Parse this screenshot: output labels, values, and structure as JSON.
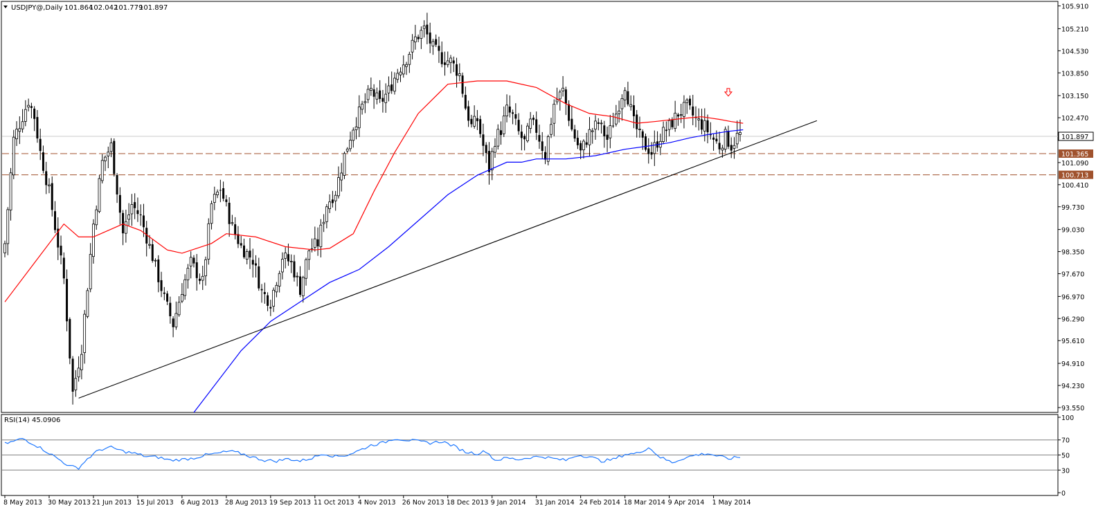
{
  "colors": {
    "background": "#ffffff",
    "frame": "#000000",
    "candle": "#000000",
    "ma_fast": "#ff0000",
    "ma_slow": "#0000ff",
    "trendline": "#000000",
    "support_level": "#a0522d",
    "rsi_line": "#1e78ff",
    "rsi_levels": "#808080",
    "price_label_bg": "#a0522d",
    "price_label_text": "#ffffff",
    "arrow": "#ff0000"
  },
  "chart_data": [
    {
      "type": "candlestick",
      "title": "USDJPY@,Daily",
      "ohlc_values": [
        "101.864",
        "102.042",
        "101.779",
        "101.897"
      ],
      "current_price_label": "101.897",
      "y_ticks": [
        "105.910",
        "105.210",
        "104.530",
        "103.850",
        "103.150",
        "102.470",
        "101.090",
        "100.410",
        "99.730",
        "99.030",
        "98.350",
        "97.670",
        "96.970",
        "96.290",
        "95.610",
        "94.910",
        "94.230",
        "93.550"
      ],
      "ylim": [
        93.4,
        106.05
      ],
      "x_tick_labels": [
        "8 May 2013",
        "30 May 2013",
        "21 Jun 2013",
        "15 Jul 2013",
        "6 Aug 2013",
        "28 Aug 2013",
        "19 Sep 2013",
        "11 Oct 2013",
        "4 Nov 2013",
        "26 Nov 2013",
        "18 Dec 2013",
        "9 Jan 2014",
        "31 Jan 2014",
        "24 Feb 2014",
        "18 Mar 2014",
        "9 Apr 2014",
        "1 May 2014"
      ],
      "x_tick_index": [
        0,
        15,
        30,
        45,
        60,
        75,
        90,
        105,
        120,
        135,
        150,
        165,
        180,
        195,
        210,
        225,
        240
      ],
      "bar_count": 250,
      "horizontal_levels": [
        {
          "value": 101.365,
          "label": "101.365",
          "style": "dashed"
        },
        {
          "value": 100.713,
          "label": "100.713",
          "style": "dashed"
        }
      ],
      "trendline": {
        "from": {
          "x_index": 25,
          "y": 93.84
        },
        "to": {
          "x_index": 275,
          "y": 102.38
        }
      },
      "signal_arrow": {
        "x_index": 245,
        "y": 103.2,
        "direction": "down"
      },
      "price_anchors": {
        "x_index": [
          0,
          3,
          8,
          10,
          12,
          15,
          20,
          23,
          26,
          30,
          33,
          36,
          40,
          43,
          46,
          50,
          54,
          57,
          60,
          63,
          67,
          70,
          73,
          77,
          80,
          84,
          87,
          90,
          94,
          97,
          100,
          103,
          106,
          109,
          112,
          115,
          118,
          121,
          124,
          127,
          130,
          133,
          136,
          139,
          142,
          145,
          148,
          151,
          154,
          156,
          158,
          160,
          162,
          164,
          166,
          168,
          170,
          172,
          174,
          176,
          178,
          180,
          183,
          186,
          189,
          192,
          195,
          198,
          201,
          204,
          207,
          210,
          213,
          216,
          219,
          222,
          225,
          228,
          231,
          234,
          237,
          240,
          242,
          244,
          246,
          248,
          250
        ],
        "close": [
          98.6,
          101.8,
          103.0,
          102.5,
          101.4,
          100.2,
          97.5,
          94.0,
          95.4,
          99.2,
          101.1,
          101.6,
          98.9,
          99.8,
          99.4,
          98.2,
          96.9,
          96.1,
          97.2,
          98.0,
          97.4,
          99.8,
          100.3,
          99.1,
          98.5,
          98.1,
          97.1,
          96.8,
          98.2,
          98.0,
          97.2,
          98.4,
          98.6,
          99.8,
          100.2,
          101.3,
          102.2,
          102.8,
          103.3,
          102.9,
          103.3,
          103.9,
          104.3,
          104.9,
          105.2,
          104.6,
          104.3,
          104.2,
          103.8,
          102.8,
          102.2,
          102.4,
          101.6,
          100.9,
          101.8,
          102.1,
          102.7,
          102.5,
          102.0,
          101.7,
          102.3,
          102.1,
          101.3,
          102.9,
          103.3,
          102.1,
          101.4,
          102.0,
          102.3,
          101.8,
          102.6,
          103.5,
          102.3,
          101.7,
          101.4,
          101.9,
          102.2,
          102.6,
          102.8,
          102.4,
          102.2,
          101.8,
          101.6,
          101.9,
          101.6,
          101.9,
          102.0
        ]
      },
      "series": [
        {
          "name": "fast_ma",
          "x_index": [
            0,
            20,
            25,
            30,
            40,
            46,
            55,
            60,
            70,
            75,
            85,
            95,
            105,
            110,
            118,
            125,
            132,
            140,
            150,
            160,
            170,
            180,
            190,
            198,
            206,
            214,
            220,
            230,
            236,
            242,
            246,
            250
          ],
          "values": [
            96.8,
            99.2,
            98.8,
            98.8,
            99.2,
            99.0,
            98.4,
            98.3,
            98.6,
            98.9,
            98.8,
            98.5,
            98.4,
            98.45,
            98.9,
            100.2,
            101.4,
            102.6,
            103.5,
            103.6,
            103.6,
            103.4,
            102.9,
            102.6,
            102.5,
            102.3,
            102.35,
            102.45,
            102.5,
            102.42,
            102.35,
            102.3
          ]
        },
        {
          "name": "slow_ma",
          "x_index": [
            64,
            80,
            90,
            100,
            110,
            120,
            130,
            140,
            150,
            160,
            170,
            175,
            180,
            190,
            200,
            210,
            218,
            225,
            232,
            238,
            245,
            250
          ],
          "values": [
            93.4,
            95.3,
            96.2,
            96.8,
            97.4,
            97.8,
            98.5,
            99.3,
            100.1,
            100.7,
            101.1,
            101.1,
            101.2,
            101.2,
            101.3,
            101.5,
            101.6,
            101.7,
            101.85,
            101.95,
            102.05,
            102.1
          ]
        }
      ]
    },
    {
      "type": "line",
      "title": "RSI(14) 45.0906",
      "y_ticks": [
        "100",
        "70",
        "50",
        "30",
        "0"
      ],
      "ylim": [
        0,
        100
      ],
      "levels": [
        70,
        50,
        30
      ],
      "series": [
        {
          "name": "RSI(14)",
          "x_index": [
            0,
            3,
            6,
            10,
            14,
            18,
            22,
            25,
            28,
            32,
            36,
            40,
            44,
            48,
            52,
            56,
            60,
            64,
            68,
            72,
            76,
            80,
            84,
            88,
            92,
            96,
            100,
            104,
            108,
            112,
            116,
            120,
            124,
            128,
            132,
            136,
            140,
            144,
            148,
            152,
            156,
            160,
            163,
            166,
            170,
            174,
            178,
            182,
            186,
            190,
            194,
            198,
            202,
            206,
            210,
            214,
            218,
            222,
            226,
            230,
            234,
            238,
            242,
            245,
            248
          ],
          "values": [
            65,
            68,
            72,
            64,
            55,
            45,
            35,
            33,
            45,
            57,
            60,
            55,
            52,
            48,
            47,
            43,
            44,
            46,
            50,
            52,
            55,
            52,
            47,
            43,
            42,
            45,
            42,
            46,
            52,
            48,
            50,
            56,
            63,
            66,
            72,
            70,
            68,
            66,
            68,
            62,
            54,
            52,
            55,
            43,
            46,
            44,
            47,
            48,
            45,
            43,
            50,
            48,
            42,
            44,
            51,
            52,
            60,
            47,
            40,
            46,
            50,
            52,
            48,
            45,
            47
          ]
        }
      ]
    }
  ]
}
